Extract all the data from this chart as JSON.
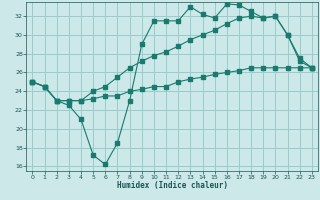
{
  "xlabel": "Humidex (Indice chaleur)",
  "bg_color": "#cce8e8",
  "grid_color": "#99cccc",
  "line_color": "#1a7a6e",
  "xlim": [
    -0.5,
    23.5
  ],
  "ylim": [
    15.5,
    33.5
  ],
  "yticks": [
    16,
    18,
    20,
    22,
    24,
    26,
    28,
    30,
    32
  ],
  "xticks": [
    0,
    1,
    2,
    3,
    4,
    5,
    6,
    7,
    8,
    9,
    10,
    11,
    12,
    13,
    14,
    15,
    16,
    17,
    18,
    19,
    20,
    21,
    22,
    23
  ],
  "line1_x": [
    0,
    1,
    2,
    3,
    4,
    5,
    6,
    7,
    8,
    9,
    10,
    11,
    12,
    13,
    14,
    15,
    16,
    17,
    18,
    19,
    20,
    21,
    22,
    23
  ],
  "line1_y": [
    25.0,
    24.5,
    23.0,
    22.5,
    21.0,
    17.2,
    16.2,
    18.5,
    23.0,
    29.0,
    31.5,
    31.5,
    31.5,
    33.0,
    32.2,
    31.8,
    33.3,
    33.2,
    32.5,
    31.8,
    32.0,
    30.0,
    27.2,
    26.5
  ],
  "line1_markers_x": [
    0,
    1,
    2,
    4,
    5,
    6,
    7,
    9,
    10,
    11,
    12,
    13,
    14,
    15,
    16,
    17,
    18,
    19,
    20,
    21,
    22,
    23
  ],
  "line2_x": [
    0,
    1,
    2,
    3,
    4,
    5,
    6,
    7,
    8,
    9,
    10,
    11,
    12,
    13,
    14,
    15,
    16,
    17,
    18,
    19,
    20,
    21,
    22,
    23
  ],
  "line2_y": [
    25.0,
    24.5,
    23.0,
    23.0,
    23.0,
    24.0,
    24.5,
    25.5,
    26.5,
    27.2,
    27.8,
    28.2,
    28.8,
    29.5,
    30.0,
    30.5,
    31.2,
    31.8,
    32.0,
    31.8,
    32.0,
    30.0,
    27.5,
    26.5
  ],
  "line3_x": [
    0,
    1,
    2,
    3,
    4,
    5,
    6,
    7,
    8,
    9,
    10,
    11,
    12,
    13,
    14,
    15,
    16,
    17,
    18,
    19,
    20,
    21,
    22,
    23
  ],
  "line3_y": [
    25.0,
    24.5,
    23.0,
    23.0,
    23.0,
    23.2,
    23.5,
    23.5,
    24.0,
    24.2,
    24.5,
    24.5,
    25.0,
    25.3,
    25.5,
    25.8,
    26.0,
    26.2,
    26.5,
    26.5,
    26.5,
    26.5,
    26.5,
    26.5
  ]
}
